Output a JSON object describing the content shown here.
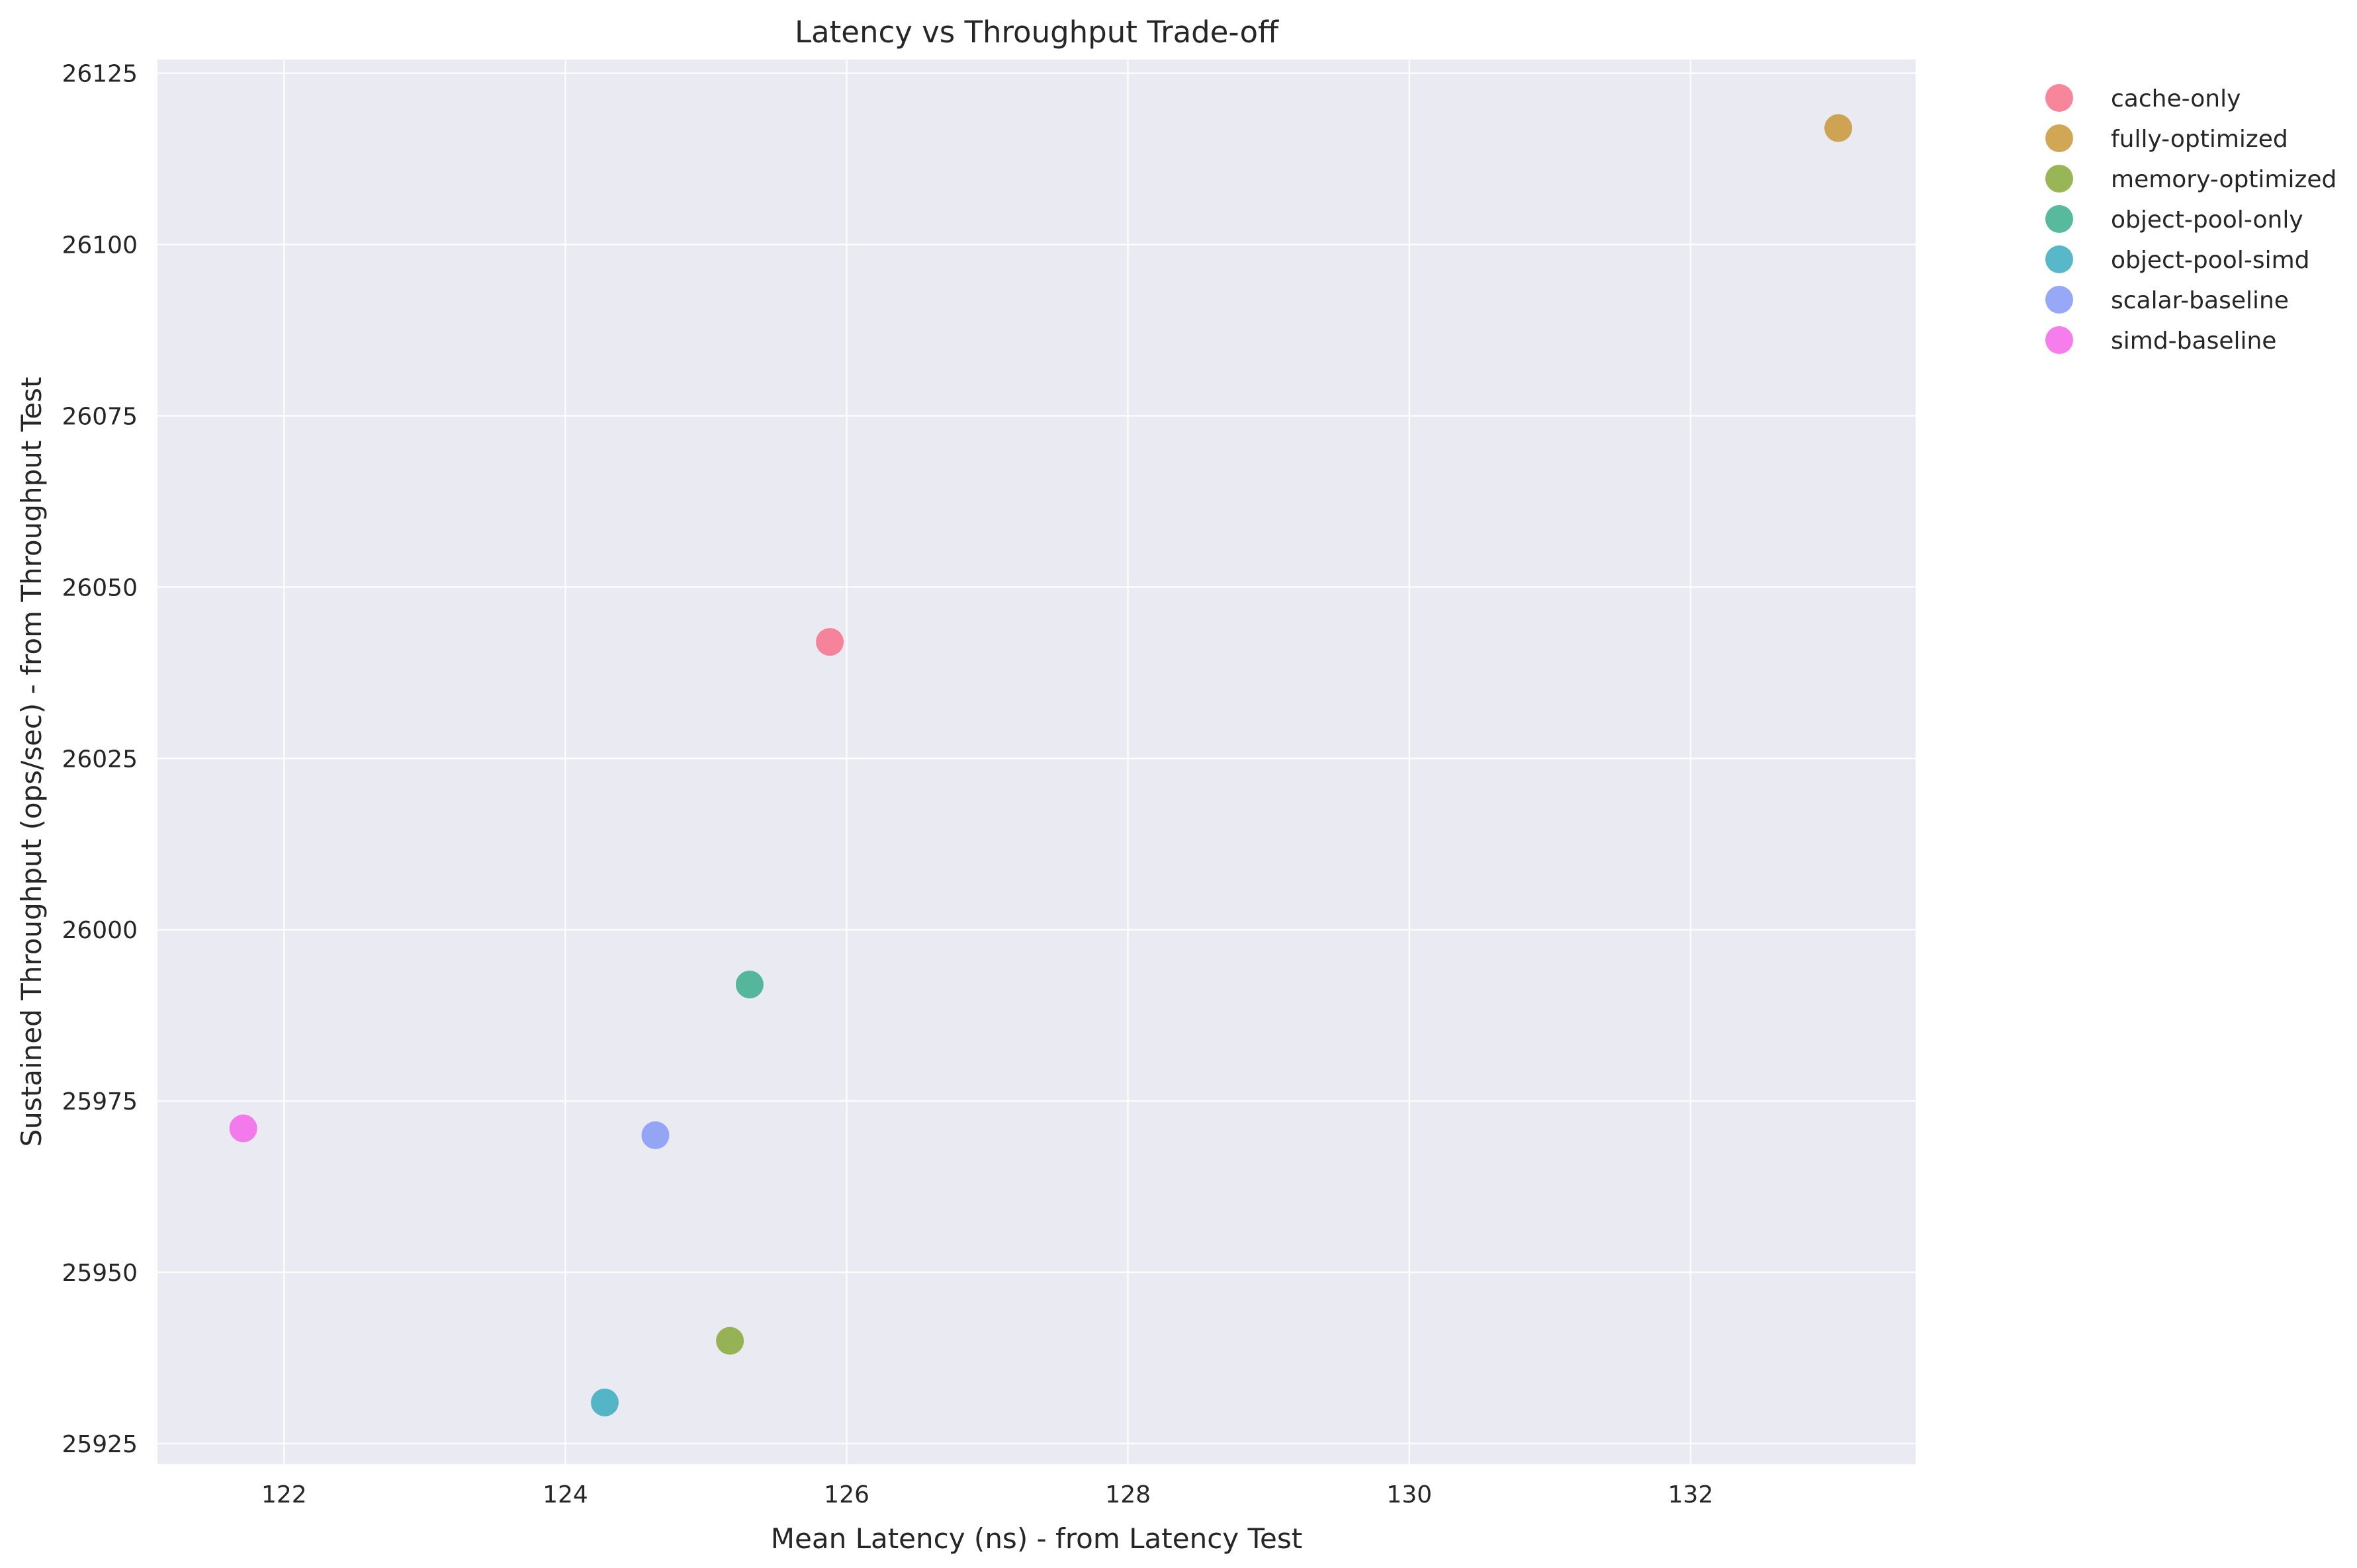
{
  "chart_data": {
    "type": "scatter",
    "title": "Latency vs Throughput Trade-off",
    "xlabel": "Mean Latency (ns) - from Latency Test",
    "ylabel": "Sustained Throughput (ops/sec) - from Throughput Test",
    "xlim": [
      121.1,
      133.6
    ],
    "ylim": [
      25922,
      26127
    ],
    "xticks": [
      122,
      124,
      126,
      128,
      130,
      132
    ],
    "yticks": [
      25925,
      25950,
      25975,
      26000,
      26025,
      26050,
      26075,
      26100,
      26125
    ],
    "grid": true,
    "legend_position": "outside-top-right",
    "background_color": "#eaeaf2",
    "series": [
      {
        "name": "cache-only",
        "color": "#f77189",
        "points": [
          {
            "x": 125.88,
            "y": 26042
          }
        ]
      },
      {
        "name": "fully-optimized",
        "color": "#c99838",
        "points": [
          {
            "x": 133.05,
            "y": 26117
          }
        ]
      },
      {
        "name": "memory-optimized",
        "color": "#86a938",
        "points": [
          {
            "x": 125.17,
            "y": 25940
          }
        ]
      },
      {
        "name": "object-pool-only",
        "color": "#3aae8c",
        "points": [
          {
            "x": 125.31,
            "y": 25992
          }
        ]
      },
      {
        "name": "object-pool-simd",
        "color": "#39abbf",
        "points": [
          {
            "x": 124.28,
            "y": 25931
          }
        ]
      },
      {
        "name": "scalar-baseline",
        "color": "#8599f6",
        "points": [
          {
            "x": 124.64,
            "y": 25970
          }
        ]
      },
      {
        "name": "simd-baseline",
        "color": "#f466e9",
        "points": [
          {
            "x": 121.71,
            "y": 25971
          }
        ]
      }
    ]
  }
}
